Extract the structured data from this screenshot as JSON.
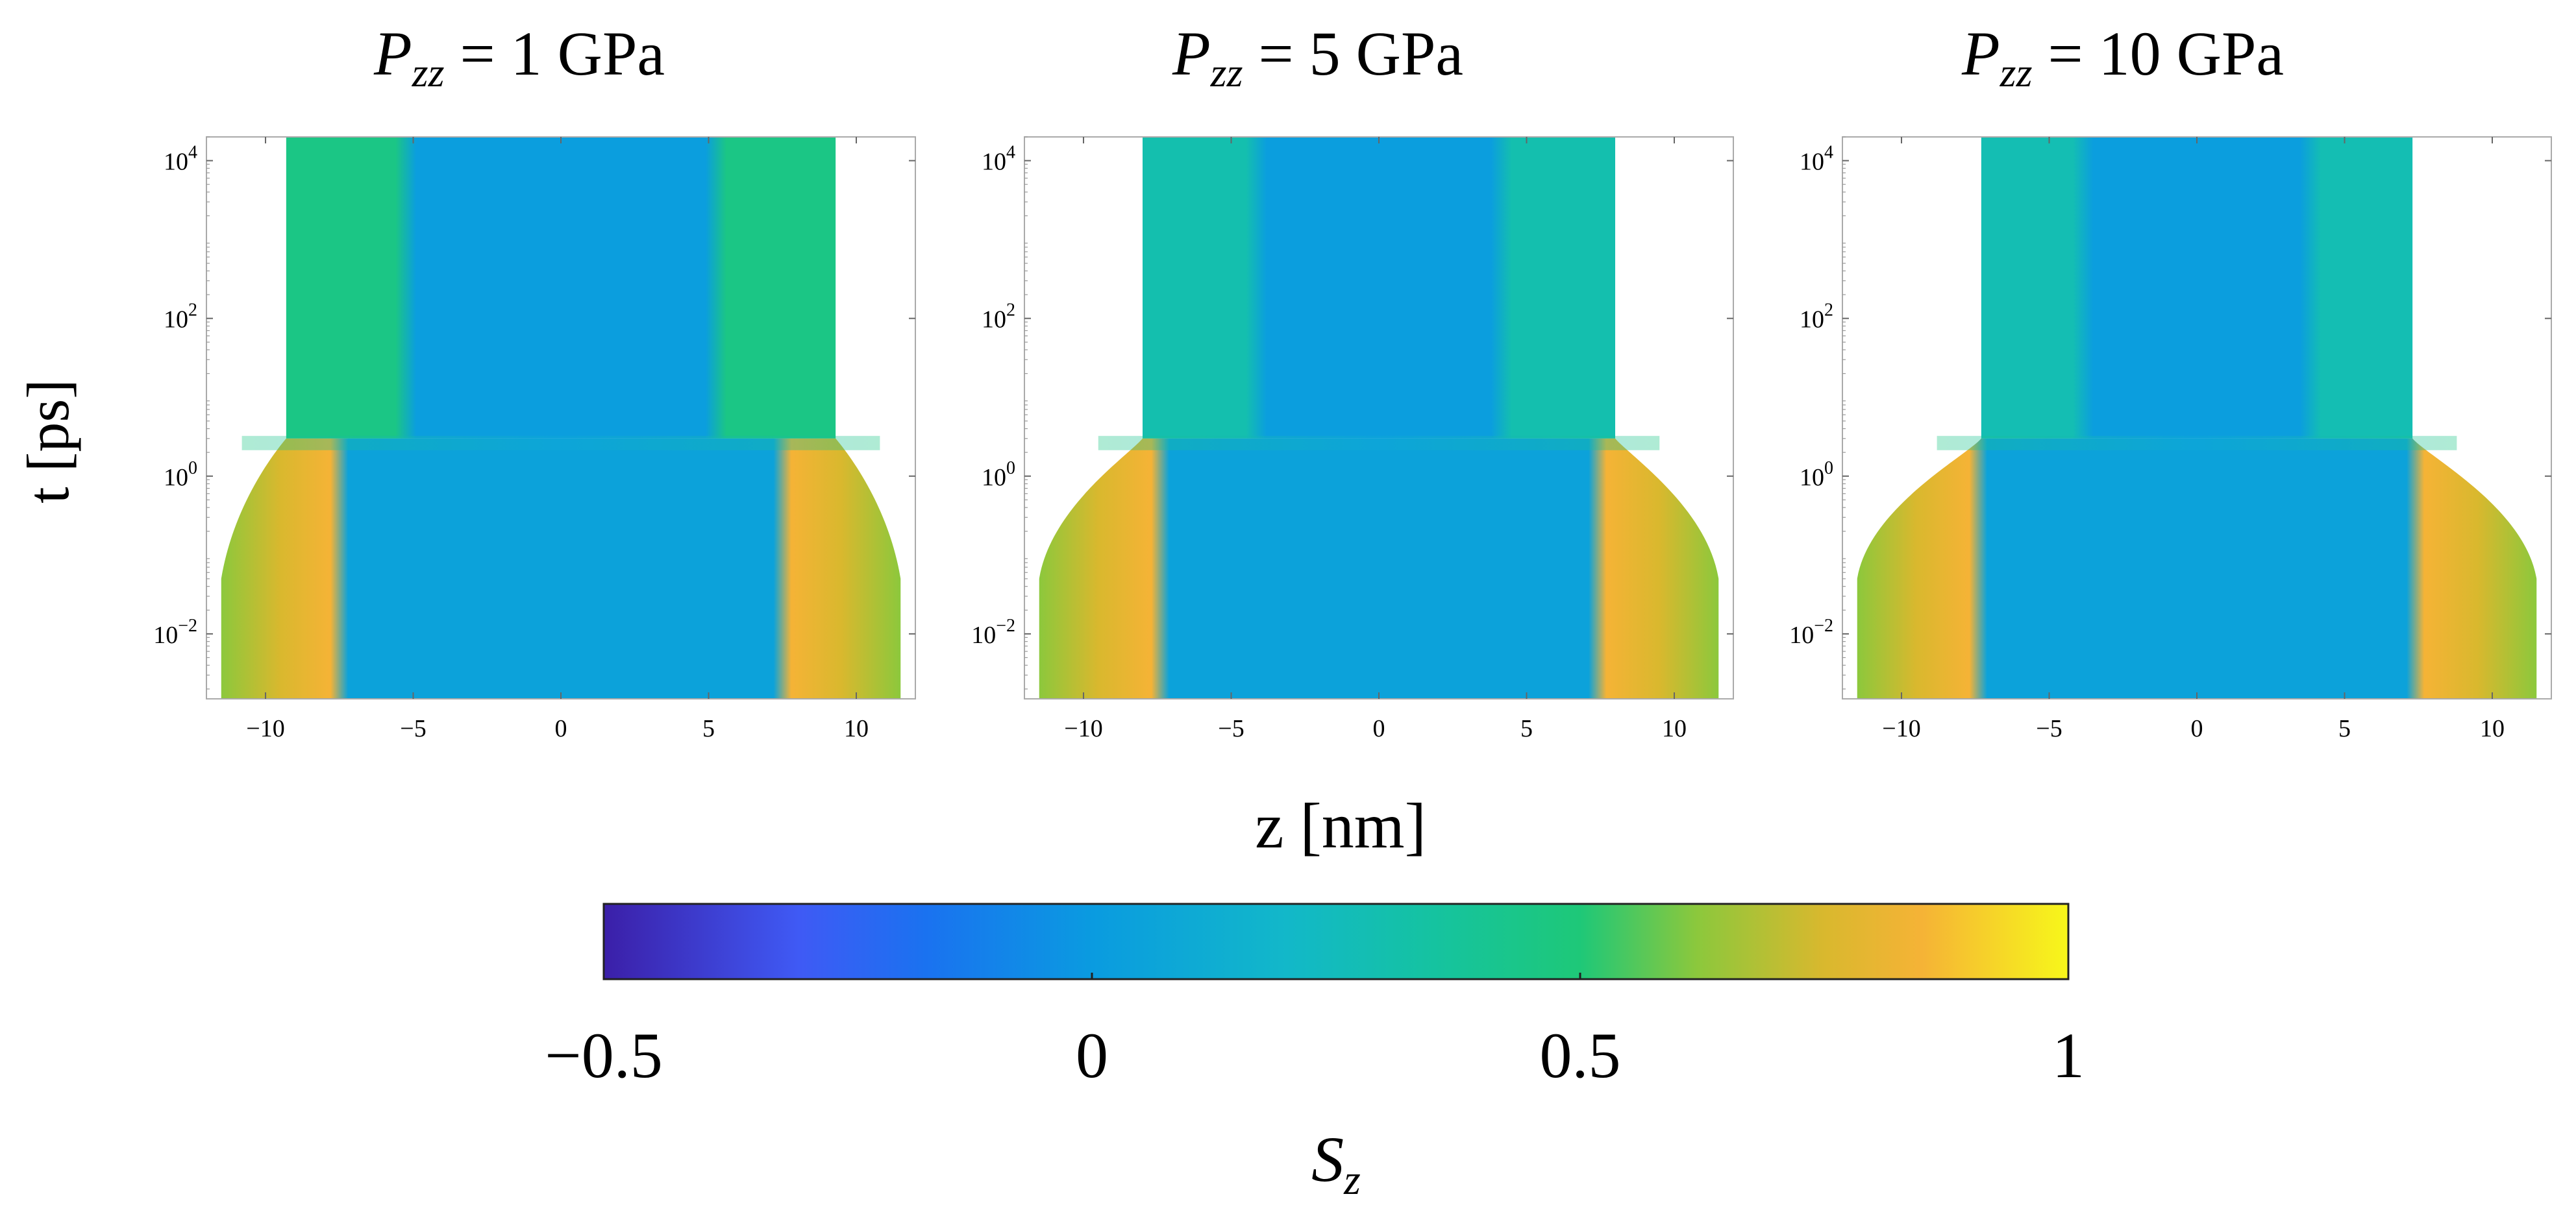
{
  "figure": {
    "ylabel": "t [ps]",
    "xlabel": "z [nm]"
  },
  "chart_data": {
    "type": "heatmap",
    "description_colors": {
      "stops": [
        {
          "v": -0.5,
          "c": "#3b1fa8"
        },
        {
          "v": -0.3,
          "c": "#3f5af5"
        },
        {
          "v": -0.17,
          "c": "#1a72f0"
        },
        {
          "v": 0.0,
          "c": "#0a9be0"
        },
        {
          "v": 0.2,
          "c": "#12b8c9"
        },
        {
          "v": 0.35,
          "c": "#15c3a0"
        },
        {
          "v": 0.5,
          "c": "#1ec878"
        },
        {
          "v": 0.62,
          "c": "#8cc83c"
        },
        {
          "v": 0.75,
          "c": "#d9b82e"
        },
        {
          "v": 0.85,
          "c": "#f5b336"
        },
        {
          "v": 1.0,
          "c": "#f7f71a"
        }
      ]
    },
    "colorbar": {
      "label_main": "S",
      "label_sub": "z",
      "range": [
        -0.5,
        1
      ],
      "ticks": [
        -0.5,
        0,
        0.5,
        1
      ],
      "tick_labels": [
        "−0.5",
        "0",
        "0.5",
        "1"
      ]
    },
    "panels": [
      {
        "title_main": "P",
        "title_sub": "zz",
        "title_rest": " = 1 GPa",
        "xlim": [
          -12,
          12
        ],
        "ylim": [
          0.0015,
          20000
        ],
        "yscale": "log",
        "xticks": [
          -10,
          -5,
          0,
          5,
          10
        ],
        "yticks": [
          0.01,
          1,
          100,
          10000
        ],
        "early_half_width": 11.5,
        "late_half_width": 9.3,
        "transition_t": 3,
        "core_half_width_early": 7.5,
        "core_half_width_late": 5.2,
        "outer_value_early": 0.75,
        "outer_value_late": 0.45,
        "core_value": 0.02
      },
      {
        "title_main": "P",
        "title_sub": "zz",
        "title_rest": " = 5 GPa",
        "xlim": [
          -12,
          12
        ],
        "ylim": [
          0.0015,
          20000
        ],
        "yscale": "log",
        "xticks": [
          -10,
          -5,
          0,
          5,
          10
        ],
        "yticks": [
          0.01,
          1,
          100,
          10000
        ],
        "early_half_width": 11.5,
        "late_half_width": 8.0,
        "transition_t": 3,
        "core_half_width_early": 7.4,
        "core_half_width_late": 4.1,
        "outer_value_early": 0.75,
        "outer_value_late": 0.3,
        "core_value": 0.02
      },
      {
        "title_main": "P",
        "title_sub": "zz",
        "title_rest": " = 10 GPa",
        "xlim": [
          -12,
          12
        ],
        "ylim": [
          0.0015,
          20000
        ],
        "yscale": "log",
        "xticks": [
          -10,
          -5,
          0,
          5,
          10
        ],
        "yticks": [
          0.01,
          1,
          100,
          10000
        ],
        "early_half_width": 11.5,
        "late_half_width": 7.3,
        "transition_t": 3,
        "core_half_width_early": 7.4,
        "core_half_width_late": 3.8,
        "outer_value_early": 0.75,
        "outer_value_late": 0.28,
        "core_value": 0.02
      }
    ]
  }
}
